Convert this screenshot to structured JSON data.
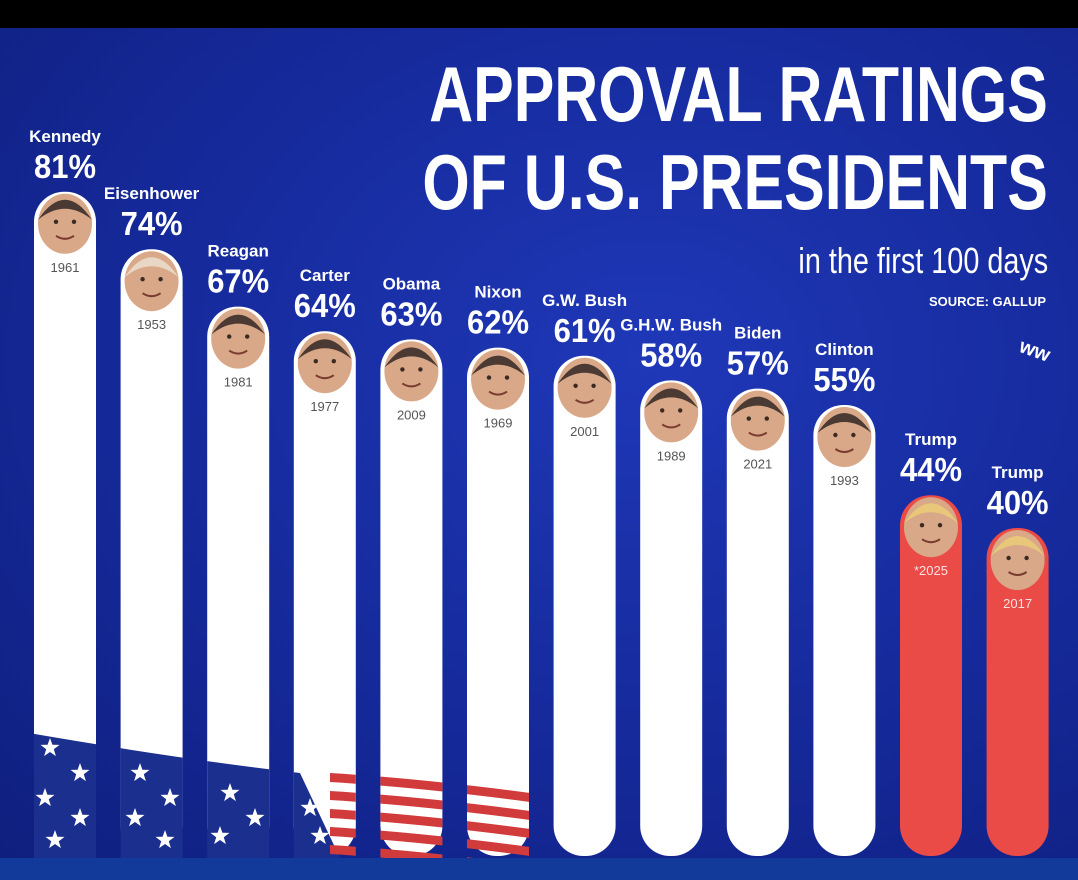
{
  "title_line1": "APPROVAL RATINGS",
  "title_line2": "OF U.S. PRESIDENTS",
  "subtitle": "in the first 100 days",
  "source": "SOURCE: GALLUP",
  "watermark": "ww",
  "colors": {
    "background": "#1a32a8",
    "bar": "#ffffff",
    "bar_trump": "#ea4b47",
    "text": "#ffffff",
    "year_text": "#555555"
  },
  "chart_data": {
    "type": "bar",
    "title": "APPROVAL RATINGS OF U.S. PRESIDENTS in the first 100 days",
    "source": "SOURCE: GALLUP",
    "categories": [
      "Kennedy",
      "Eisenhower",
      "Reagan",
      "Carter",
      "Obama",
      "Nixon",
      "G.W. Bush",
      "G.H.W. Bush",
      "Biden",
      "Clinton",
      "Trump",
      "Trump"
    ],
    "years": [
      "1961",
      "1953",
      "1981",
      "1977",
      "2009",
      "1969",
      "2001",
      "1989",
      "2021",
      "1993",
      "*2025",
      "2017"
    ],
    "values": [
      81,
      74,
      67,
      64,
      63,
      62,
      61,
      58,
      57,
      55,
      44,
      40
    ],
    "value_labels": [
      "81%",
      "74%",
      "67%",
      "64%",
      "63%",
      "62%",
      "61%",
      "58%",
      "57%",
      "55%",
      "44%",
      "40%"
    ],
    "highlight": [
      false,
      false,
      false,
      false,
      false,
      false,
      false,
      false,
      false,
      false,
      true,
      true
    ]
  }
}
